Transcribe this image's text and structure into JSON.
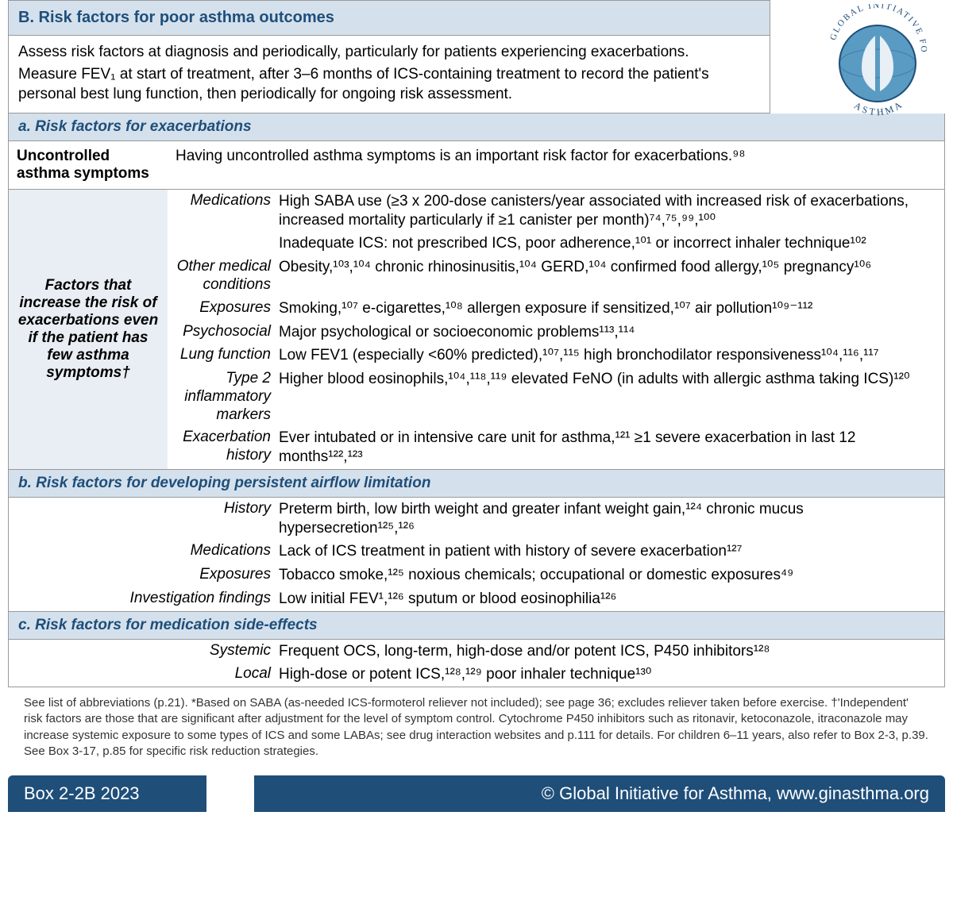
{
  "colors": {
    "band_bg": "#d4e1ed",
    "band_text": "#1f4e79",
    "shade_bg": "#e8eef4",
    "footer_bg": "#1f4e79",
    "border": "#999999"
  },
  "logo": {
    "top_text": "GLOBAL INITIATIVE FOR",
    "bottom_text": "ASTHMA"
  },
  "header": "B. Risk factors for poor asthma outcomes",
  "intro_lines": [
    "Assess risk factors at diagnosis and periodically, particularly for patients experiencing exacerbations.",
    "Measure FEV₁ at start of treatment, after 3–6 months of ICS-containing treatment to record the patient's personal best lung function, then periodically for ongoing risk assessment."
  ],
  "sectionA": {
    "title": "a. Risk factors for exacerbations",
    "row1_label": "Uncontrolled asthma symptoms",
    "row1_text": "Having uncontrolled asthma symptoms is an important risk factor for exacerbations.⁹⁸",
    "row2_label": "Factors that increase the risk of exacerbations even if the patient has few asthma symptoms†",
    "factors": [
      {
        "label": "Medications",
        "text": "High SABA use (≥3 x 200-dose canisters/year associated with increased risk of exacerbations, increased mortality particularly if ≥1 canister per month)⁷⁴,⁷⁵,⁹⁹,¹⁰⁰"
      },
      {
        "label": "",
        "text": "Inadequate ICS: not prescribed ICS, poor adherence,¹⁰¹ or incorrect inhaler technique¹⁰²"
      },
      {
        "label": "Other medical conditions",
        "text": "Obesity,¹⁰³,¹⁰⁴ chronic rhinosinusitis,¹⁰⁴ GERD,¹⁰⁴ confirmed food allergy,¹⁰⁵ pregnancy¹⁰⁶"
      },
      {
        "label": "Exposures",
        "text": "Smoking,¹⁰⁷ e-cigarettes,¹⁰⁸ allergen exposure if sensitized,¹⁰⁷ air pollution¹⁰⁹⁻¹¹²"
      },
      {
        "label": "Psychosocial",
        "text": "Major psychological or socioeconomic problems¹¹³,¹¹⁴"
      },
      {
        "label": "Lung function",
        "text": "Low FEV1 (especially <60% predicted),¹⁰⁷,¹¹⁵ high bronchodilator responsiveness¹⁰⁴,¹¹⁶,¹¹⁷"
      },
      {
        "label": "Type 2 inflammatory markers",
        "text": "Higher blood eosinophils,¹⁰⁴,¹¹⁸,¹¹⁹ elevated FeNO (in adults with allergic asthma taking ICS)¹²⁰"
      },
      {
        "label": "Exacerbation history",
        "text": "Ever intubated or in intensive care unit for asthma,¹²¹ ≥1 severe exacerbation in last 12 months¹²²,¹²³"
      }
    ]
  },
  "sectionB": {
    "title": "b. Risk factors for developing persistent airflow limitation",
    "factors": [
      {
        "label": "History",
        "text": "Preterm birth, low birth weight and greater infant weight gain,¹²⁴ chronic mucus hypersecretion¹²⁵,¹²⁶"
      },
      {
        "label": "Medications",
        "text": "Lack of ICS treatment in patient with history of severe exacerbation¹²⁷"
      },
      {
        "label": "Exposures",
        "text": "Tobacco smoke,¹²⁵ noxious chemicals; occupational or domestic exposures⁴⁹"
      },
      {
        "label": "Investigation findings",
        "text": "Low initial FEV¹,¹²⁶ sputum or blood eosinophilia¹²⁶"
      }
    ]
  },
  "sectionC": {
    "title": "c. Risk factors for medication side-effects",
    "factors": [
      {
        "label": "Systemic",
        "text": "Frequent OCS, long-term, high-dose and/or potent ICS, P450 inhibitors¹²⁸"
      },
      {
        "label": "Local",
        "text": "High-dose or potent ICS,¹²⁸,¹²⁹ poor inhaler technique¹³⁰"
      }
    ]
  },
  "footnote": "See list of abbreviations (p.21). *Based on SABA (as-needed ICS-formoterol reliever not included); see page 36; excludes reliever taken before exercise. †'Independent' risk factors are those that are significant after adjustment for the level of symptom control. Cytochrome P450 inhibitors such as ritonavir, ketoconazole, itraconazole may increase systemic exposure to some types of ICS and some LABAs; see drug interaction websites and p.111 for details. For children 6–11 years, also refer to Box 2-3, p.39. See Box 3-17, p.85 for specific risk reduction strategies.",
  "footer_left": "Box 2-2B 2023",
  "footer_right": "© Global Initiative for Asthma, www.ginasthma.org"
}
